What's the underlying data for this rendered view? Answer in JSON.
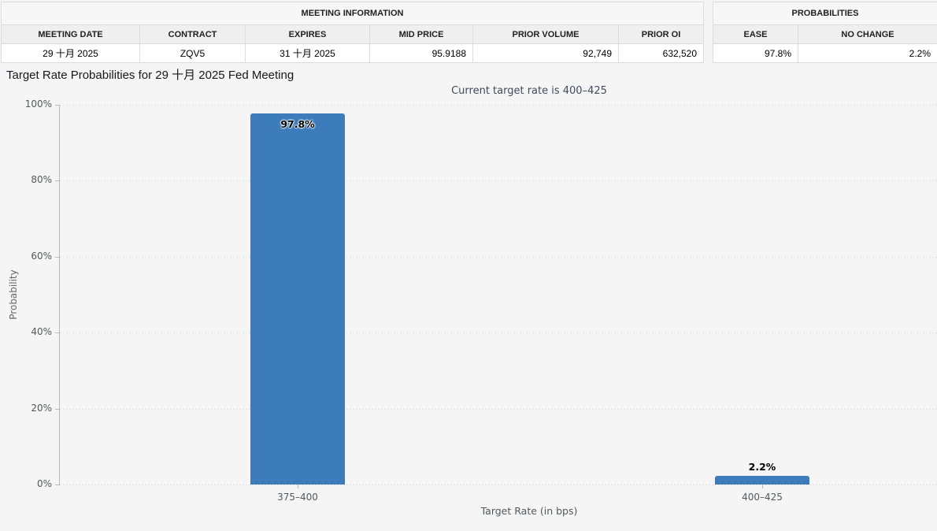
{
  "meeting_information": {
    "title": "MEETING INFORMATION",
    "columns": [
      "MEETING DATE",
      "CONTRACT",
      "EXPIRES",
      "MID PRICE",
      "PRIOR VOLUME",
      "PRIOR OI"
    ],
    "row": [
      "29 十月 2025",
      "ZQV5",
      "31 十月 2025",
      "95.9188",
      "92,749",
      "632,520"
    ]
  },
  "probabilities": {
    "title": "PROBABILITIES",
    "columns": [
      "EASE",
      "NO CHANGE"
    ],
    "row": [
      "97.8%",
      "2.2%"
    ]
  },
  "page_title": "Target Rate Probabilities for 29 十月 2025 Fed Meeting",
  "chart_data": {
    "type": "bar",
    "title": "Target Rate Probabilities for 29 十月 2025 Fed Meeting",
    "subtitle": "Current target rate is 400–425",
    "categories": [
      "375–400",
      "400–425"
    ],
    "values": [
      97.8,
      2.2
    ],
    "value_labels": [
      "97.8%",
      "2.2%"
    ],
    "xlabel": "Target Rate (in bps)",
    "ylabel": "Probability",
    "ylim": [
      0,
      100
    ],
    "yticks": [
      "0%",
      "20%",
      "40%",
      "60%",
      "80%",
      "100%"
    ],
    "grid": "horizontal dotted",
    "legend": "none",
    "bar_color": "#3d7cba"
  },
  "colors": {
    "page_background": "#f5f5f6",
    "bar": "#3d7cba",
    "table_header_background": "#efefef",
    "table_border": "#dcdcdc",
    "axis_text": "#55575e",
    "subtitle_text": "#3f4a5f"
  }
}
